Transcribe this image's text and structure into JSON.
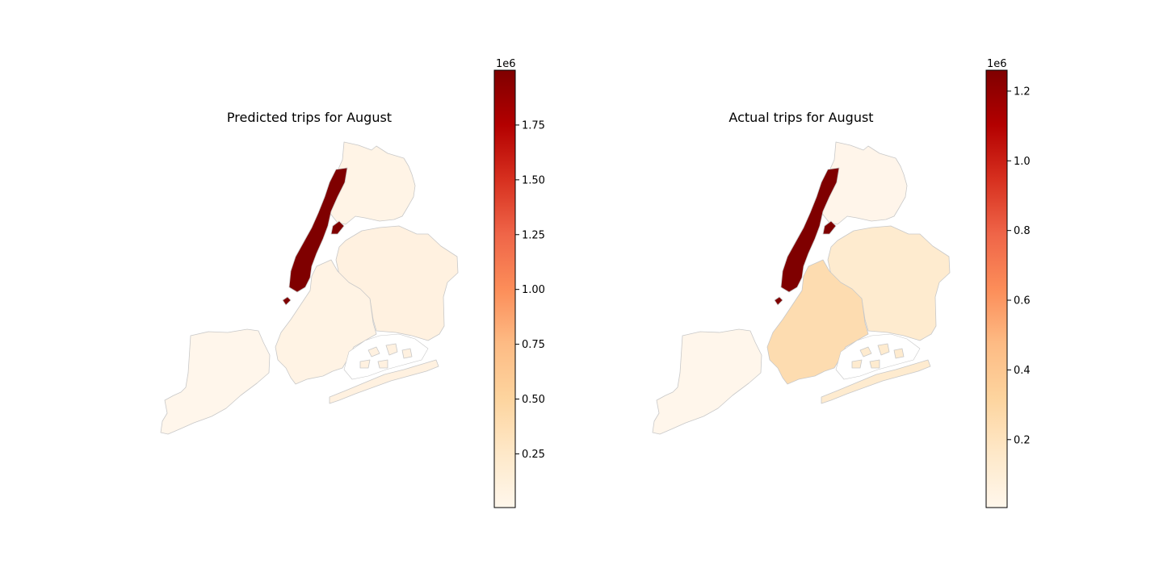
{
  "panels": [
    {
      "title": "Predicted trips for August",
      "colorbar": {
        "exponent_label": "1e6",
        "range": [
          0.005,
          2.0
        ],
        "ticks": [
          0.25,
          0.5,
          0.75,
          1.0,
          1.25,
          1.5,
          1.75
        ],
        "tick_labels": [
          "0.25",
          "0.50",
          "0.75",
          "1.00",
          "1.25",
          "1.50",
          "1.75"
        ]
      },
      "fills": {
        "manhattan": "#7f0000",
        "bronx": "#fff4e6",
        "queens": "#fff1e0",
        "brooklyn": "#fff3e4",
        "staten_island": "#fff6eb",
        "airport": "#7f0000"
      }
    },
    {
      "title": "Actual trips for August",
      "colorbar": {
        "exponent_label": "1e6",
        "range": [
          0.005,
          1.26
        ],
        "ticks": [
          0.2,
          0.4,
          0.6,
          0.8,
          1.0,
          1.2
        ],
        "tick_labels": [
          "0.2",
          "0.4",
          "0.6",
          "0.8",
          "1.0",
          "1.2"
        ]
      },
      "fills": {
        "manhattan": "#7f0000",
        "bronx": "#fff5ea",
        "queens": "#feebcf",
        "brooklyn": "#fddcb0",
        "staten_island": "#fff6eb",
        "airport": "#7f0000"
      }
    }
  ],
  "colormap": "OrRd",
  "colormap_stops": [
    "#fff7ec",
    "#fee8c8",
    "#fdd49e",
    "#fdbb84",
    "#fc8d59",
    "#ef6548",
    "#d7301f",
    "#b30000",
    "#7f0000"
  ]
}
